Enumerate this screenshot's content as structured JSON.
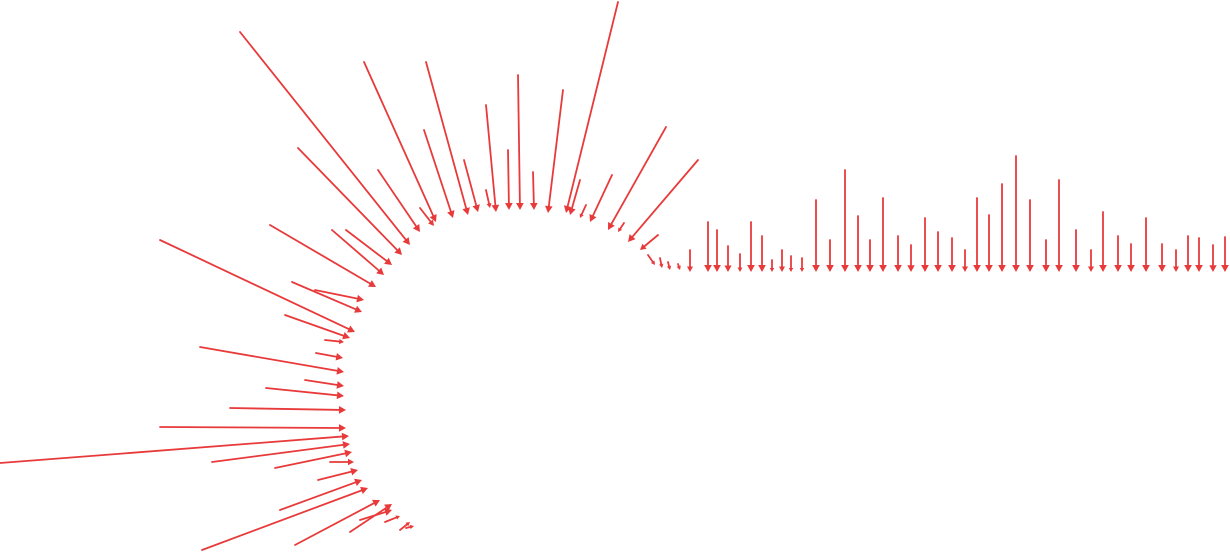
{
  "figure": {
    "background_color": "#ffffff",
    "arrow_color": "#e83a3a",
    "description_count": 120
  }
}
